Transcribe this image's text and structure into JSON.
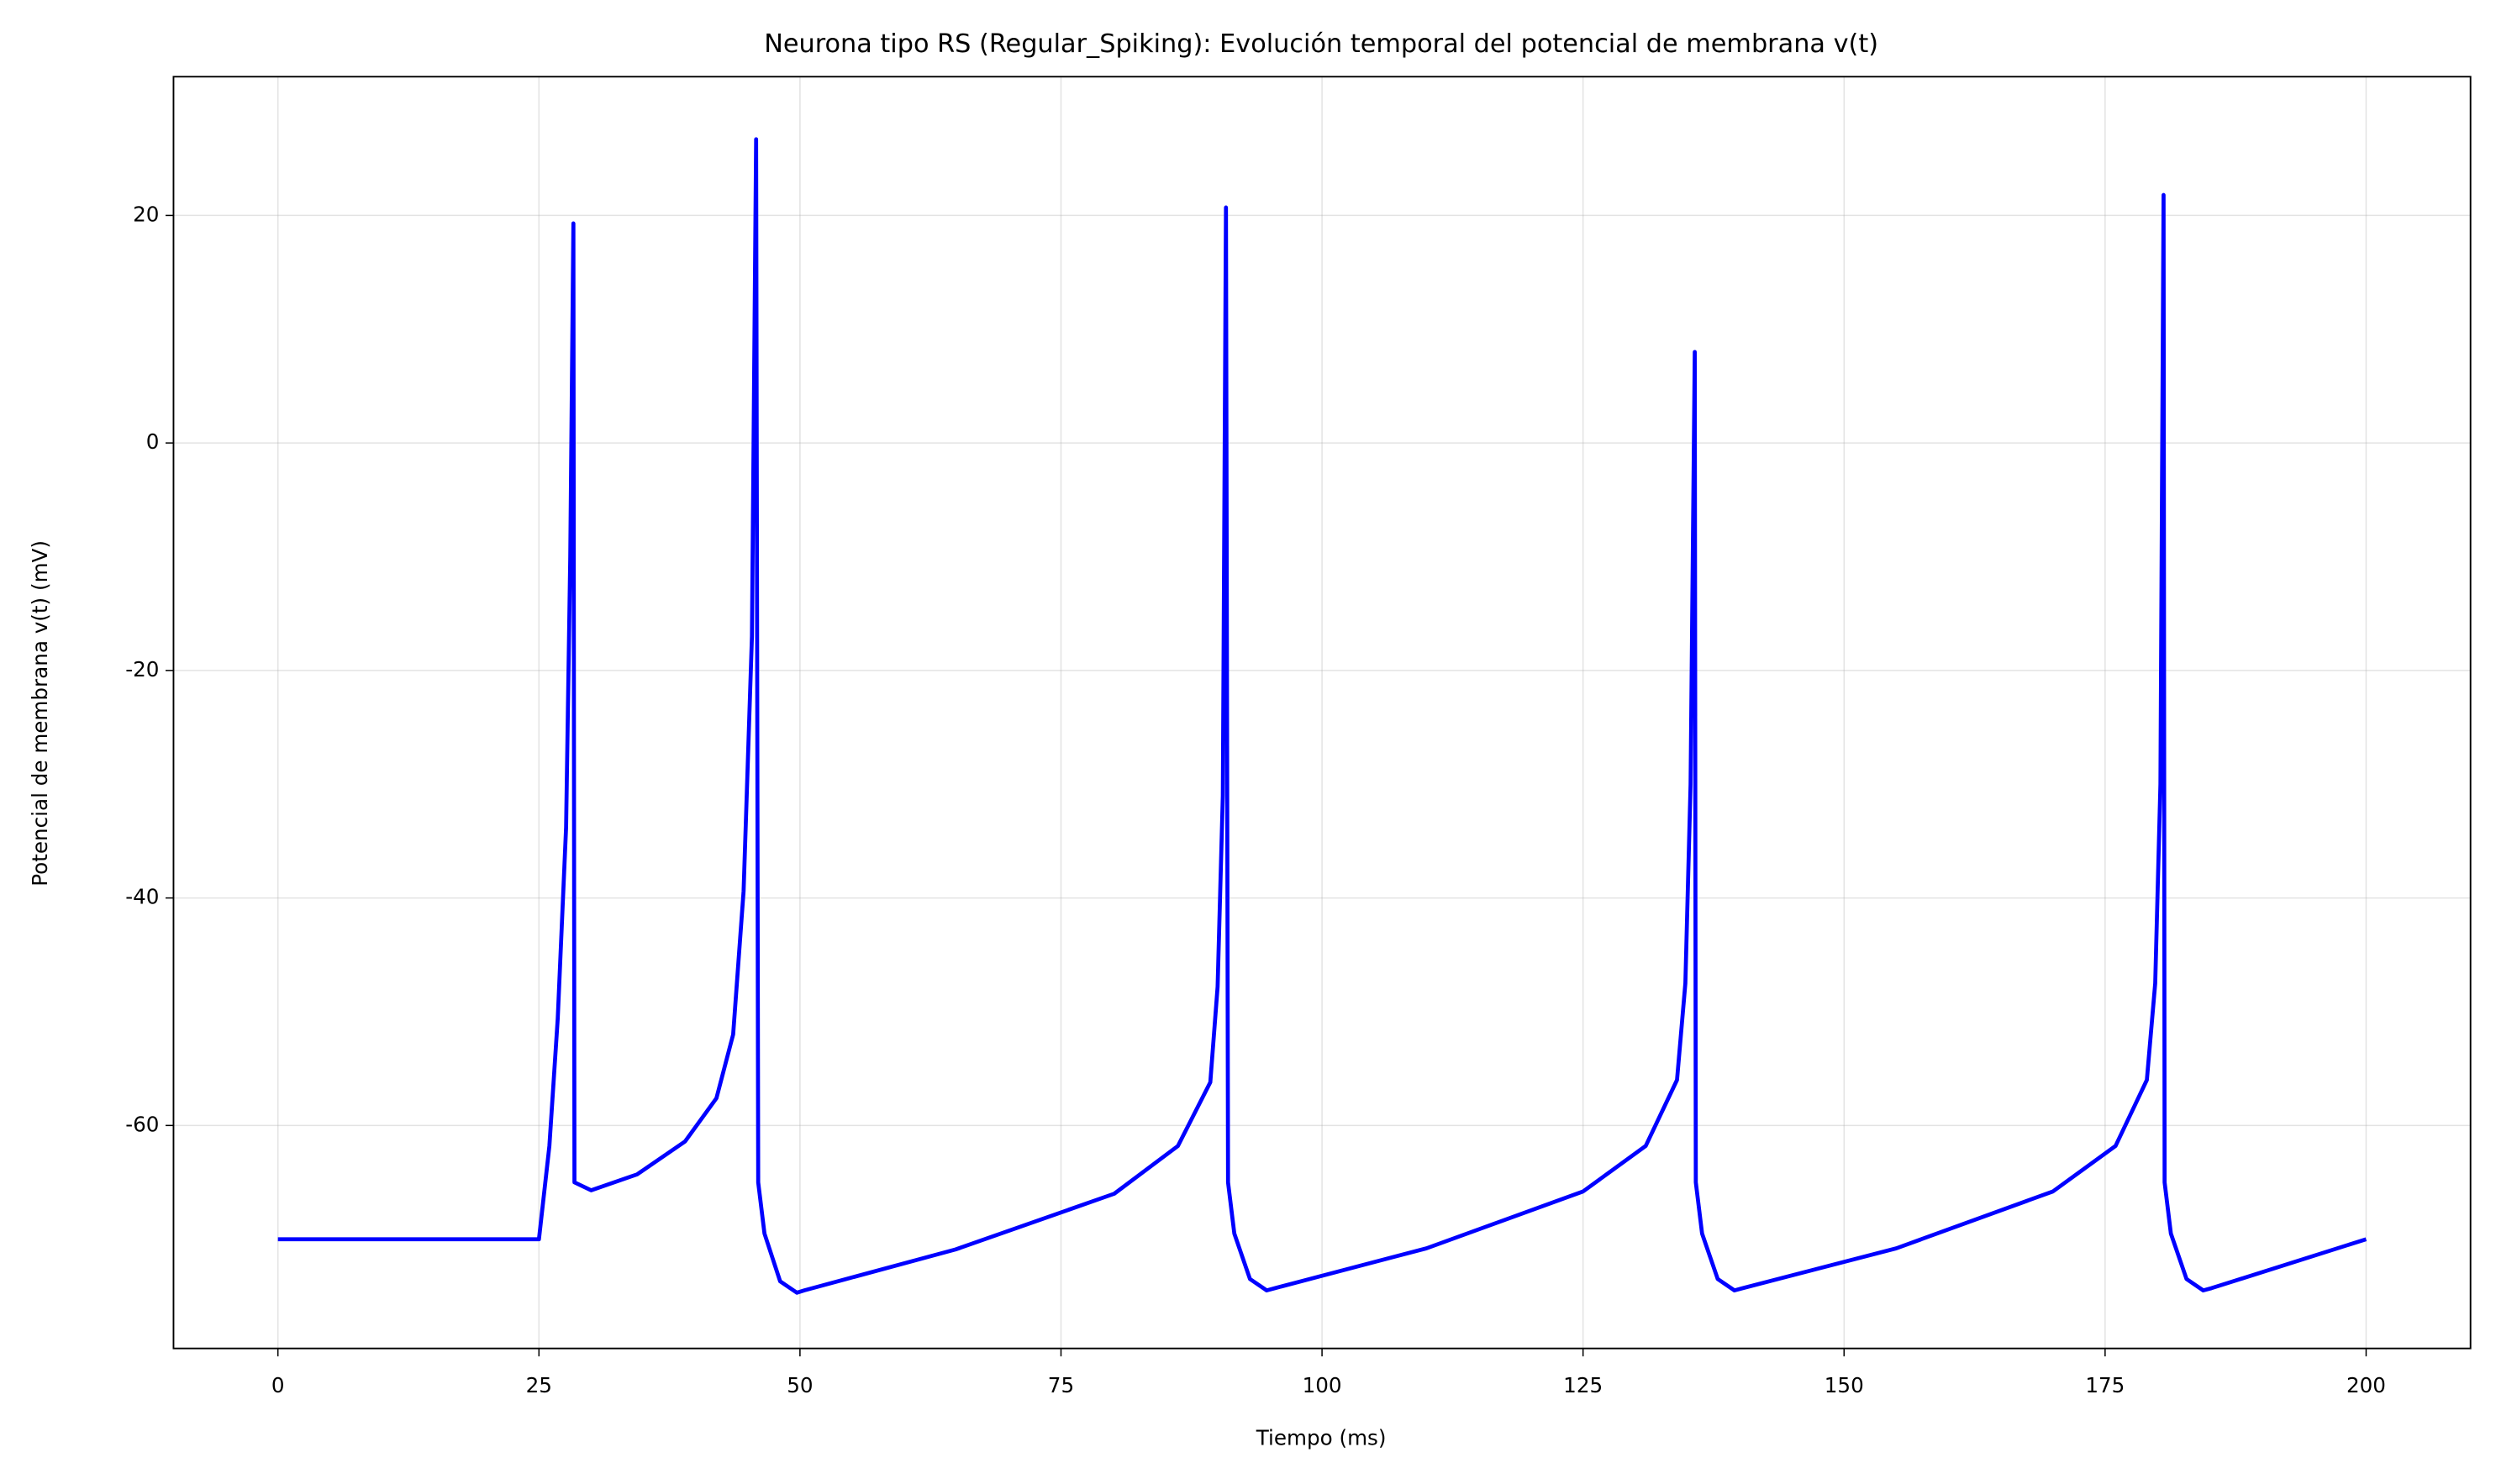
{
  "chart_data": {
    "type": "line",
    "title": "Neurona tipo RS (Regular_Spiking): Evolución temporal del potencial de membrana v(t)",
    "xlabel": "Tiempo (ms)",
    "ylabel": "Potencial de membrana v(t) (mV)",
    "xlim": [
      -10,
      210
    ],
    "ylim": [
      -79.6,
      32.2
    ],
    "xticks": [
      0,
      25,
      50,
      75,
      100,
      125,
      150,
      175,
      200
    ],
    "yticks": [
      -60,
      -40,
      -20,
      0,
      20
    ],
    "grid": true,
    "series": [
      {
        "name": "v(t)",
        "color": "#0000ff",
        "x": [
          0,
          25,
          26,
          26.8,
          27.6,
          28.0,
          28.3,
          28.4,
          30,
          34.4,
          39,
          42,
          43.6,
          44.6,
          45.4,
          45.8,
          46.0,
          46.6,
          48.1,
          49.7,
          50.4,
          64.9,
          80.1,
          86.2,
          89.3,
          90,
          90.5,
          90.8,
          91.0,
          91.6,
          93.1,
          94.7,
          95.5,
          110,
          125,
          131,
          134,
          134.8,
          135.3,
          135.7,
          135.8,
          136.4,
          137.9,
          139.5,
          140.3,
          155,
          170,
          176,
          179,
          179.8,
          180.3,
          180.6,
          180.7,
          181.3,
          182.8,
          184.4,
          185.2,
          200
        ],
        "values": [
          -70,
          -70,
          -61.8,
          -50.6,
          -33.8,
          -10,
          19.3,
          -65,
          -65.7,
          -64.3,
          -61.4,
          -57.6,
          -52,
          -39.4,
          -17,
          26.7,
          -65,
          -69.5,
          -73.7,
          -74.7,
          -74.5,
          -70.9,
          -66,
          -61.8,
          -56.2,
          -47.8,
          -31,
          20.7,
          -65,
          -69.5,
          -73.5,
          -74.5,
          -74.3,
          -70.8,
          -65.8,
          -61.8,
          -56,
          -47.5,
          -30,
          8.0,
          -65,
          -69.5,
          -73.5,
          -74.5,
          -74.3,
          -70.8,
          -65.8,
          -61.8,
          -56,
          -47.5,
          -30,
          21.8,
          -65,
          -69.5,
          -73.5,
          -74.5,
          -74.3,
          -70
        ]
      }
    ]
  }
}
